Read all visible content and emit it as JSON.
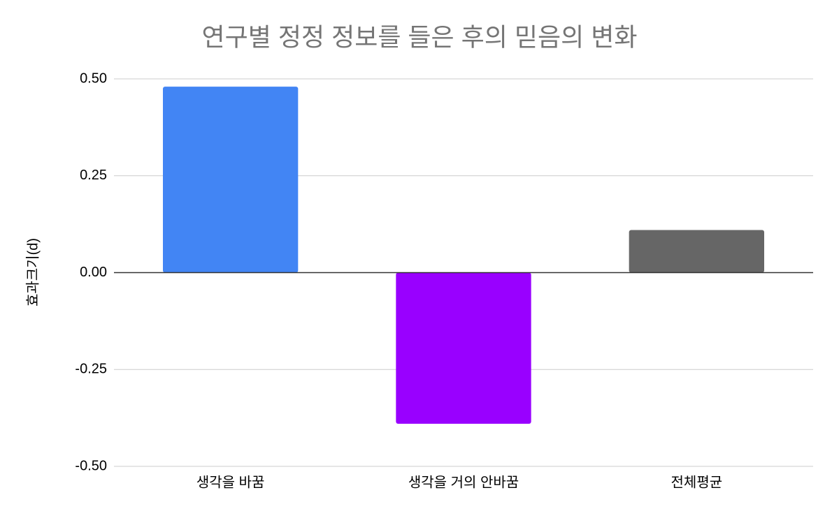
{
  "chart_data": {
    "type": "bar",
    "title": "연구별 정정 정보를 들은 후의 믿음의 변화",
    "y_label": "효과크기(d)",
    "categories": [
      "생각을 바꿈",
      "생각을 거의 안바꿈",
      "전체평균"
    ],
    "values": [
      0.48,
      -0.39,
      0.11
    ],
    "colors": [
      "#4285f4",
      "#9900ff",
      "#666666"
    ],
    "ylim": [
      -0.5,
      0.5
    ],
    "yticks": [
      {
        "value": -0.5,
        "label": "-0.50"
      },
      {
        "value": -0.25,
        "label": "-0.25"
      },
      {
        "value": 0,
        "label": "0.00"
      },
      {
        "value": 0.25,
        "label": "0.25"
      },
      {
        "value": 0.5,
        "label": "0.50"
      }
    ],
    "grid": true
  }
}
